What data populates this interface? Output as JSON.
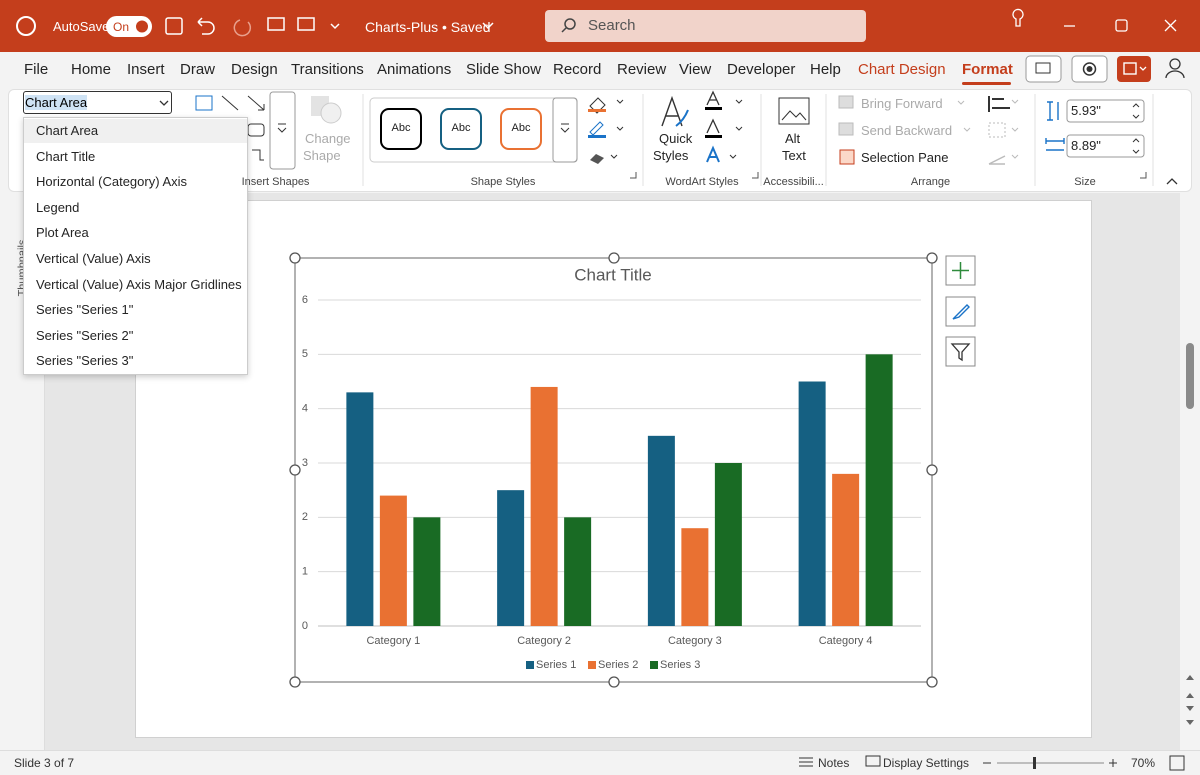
{
  "title_bar": {
    "autosave": "AutoSave",
    "toggle": "On",
    "document": "Charts-Plus • Saved",
    "search": "Search"
  },
  "tabs": [
    "File",
    "Home",
    "Insert",
    "Draw",
    "Design",
    "Transitions",
    "Animations",
    "Slide Show",
    "Record",
    "Review",
    "View",
    "Developer",
    "Help",
    "Chart Design",
    "Format"
  ],
  "ribbon": {
    "element_selector": "Chart Area",
    "change_shape": [
      "Change",
      "Shape"
    ],
    "shape_style_buttons": [
      "Abc",
      "Abc",
      "Abc"
    ],
    "quick_styles": [
      "Quick",
      "Styles"
    ],
    "alt_text": [
      "Alt",
      "Text"
    ],
    "arrange": [
      "Bring Forward",
      "Send Backward",
      "Selection Pane"
    ],
    "size": {
      "height": "5.93\"",
      "width": "8.89\""
    },
    "groups": [
      "Insert Shapes",
      "Shape Styles",
      "WordArt Styles",
      "Accessibili...",
      "Arrange",
      "Size"
    ]
  },
  "dropdown": [
    "Chart Area",
    "Chart Title",
    "Horizontal (Category) Axis",
    "Legend",
    "Plot Area",
    "Vertical (Value) Axis",
    "Vertical (Value) Axis Major Gridlines",
    "Series \"Series 1\"",
    "Series \"Series 2\"",
    "Series \"Series 3\""
  ],
  "side_pane": "Thumbnails",
  "status_bar": {
    "slide": "Slide 3 of 7",
    "notes": "Notes",
    "display": "Display Settings",
    "zoom": "70%"
  },
  "chart_data": {
    "type": "bar",
    "title": "Chart Title",
    "categories": [
      "Category 1",
      "Category 2",
      "Category 3",
      "Category 4"
    ],
    "series": [
      {
        "name": "Series 1",
        "color": "#156082",
        "values": [
          4.3,
          2.5,
          3.5,
          4.5
        ]
      },
      {
        "name": "Series 2",
        "color": "#e97132",
        "values": [
          2.4,
          4.4,
          1.8,
          2.8
        ]
      },
      {
        "name": "Series 3",
        "color": "#196b24",
        "values": [
          2,
          2,
          3,
          5
        ]
      }
    ],
    "ylim": [
      0,
      6
    ],
    "yticks": [
      0,
      1,
      2,
      3,
      4,
      5,
      6
    ],
    "grid": true,
    "legend": "bottom"
  }
}
